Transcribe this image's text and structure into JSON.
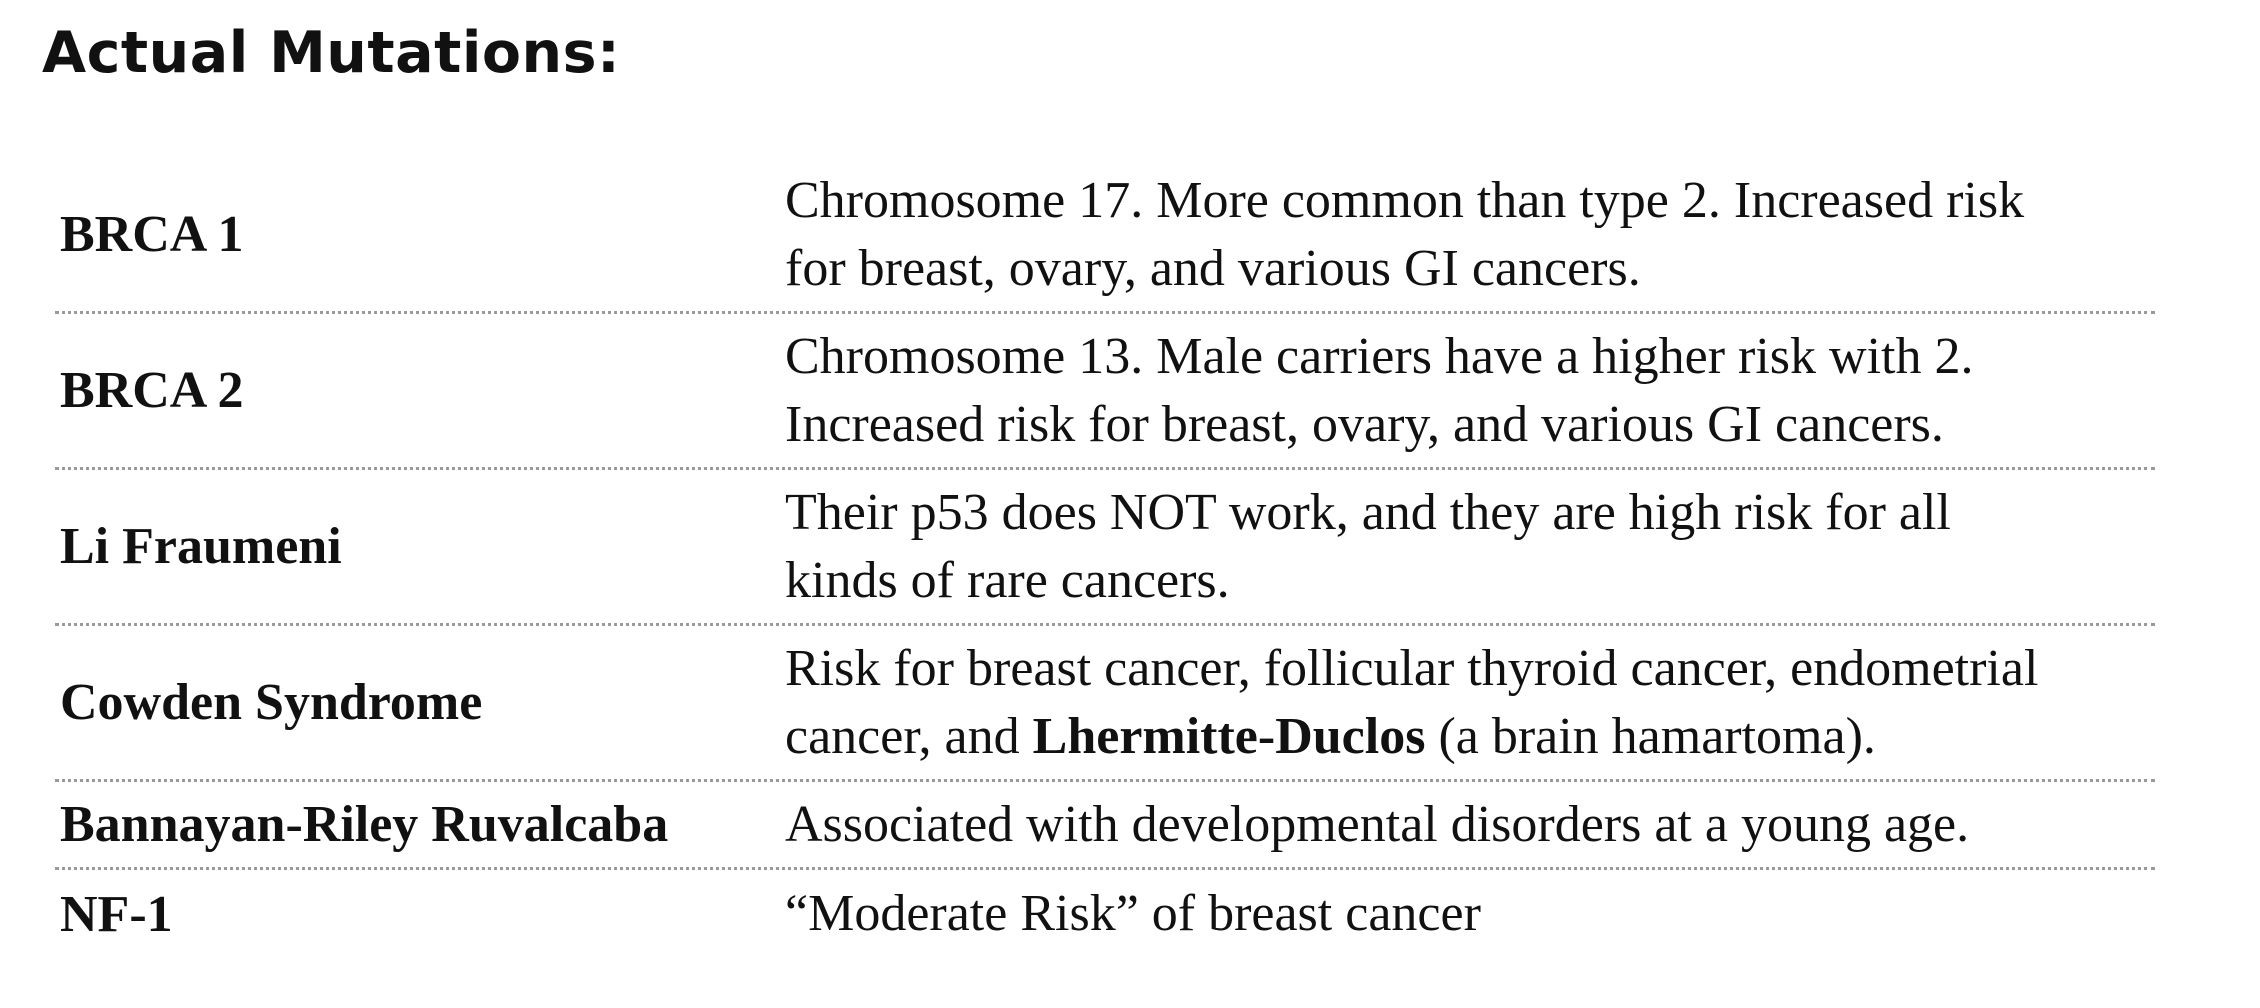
{
  "title": "Actual Mutations:",
  "rows": [
    {
      "term": "BRCA 1",
      "desc_line1": "Chromosome 17. More common than type 2.  Increased risk",
      "desc_line2": "for breast, ovary, and various GI cancers."
    },
    {
      "term": "BRCA 2",
      "desc_line1": "Chromosome 13. Male carriers have a higher risk with 2.",
      "desc_line2": "Increased risk for breast, ovary, and various GI cancers."
    },
    {
      "term": "Li Fraumeni",
      "desc_line1": "Their p53 does NOT work, and they are high risk for all",
      "desc_line2": "kinds of rare cancers."
    },
    {
      "term": "Cowden Syndrome",
      "desc_line1": "Risk for breast cancer, follicular thyroid cancer, endometrial",
      "desc_line2_pre": "cancer, and ",
      "desc_line2_bold": "Lhermitte-Duclos",
      "desc_line2_post": " (a brain hamartoma)."
    },
    {
      "term": "Bannayan-Riley Ruvalcaba",
      "desc_line1": "Associated with developmental disorders at a young age."
    },
    {
      "term": "NF-1",
      "desc_line1": "“Moderate Risk” of breast cancer"
    }
  ]
}
